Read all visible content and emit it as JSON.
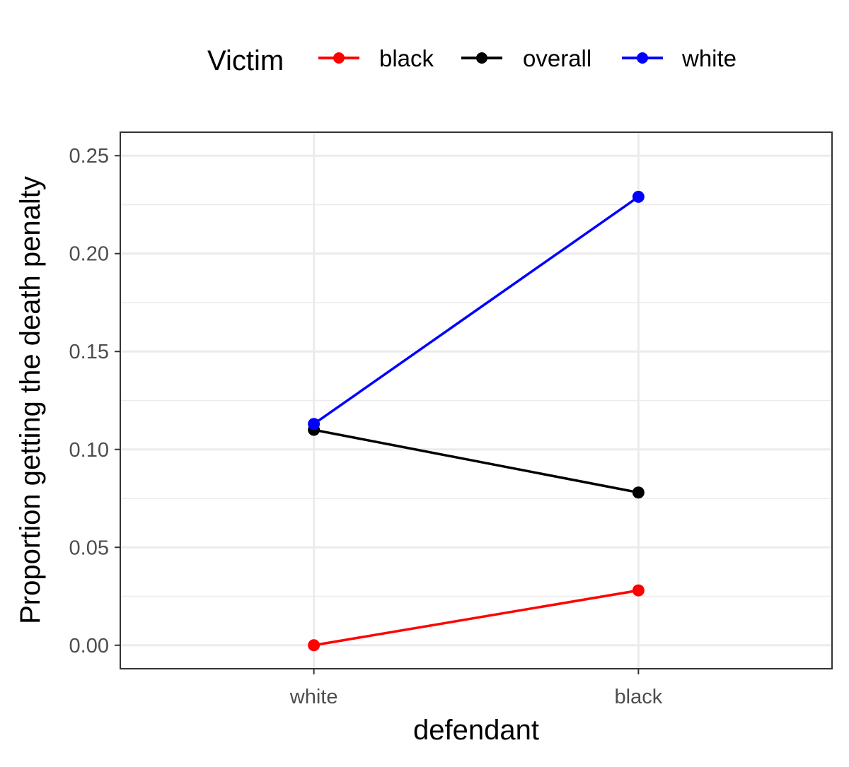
{
  "chart_data": {
    "type": "line",
    "title": "",
    "xlabel": "defendant",
    "ylabel": "Proportion getting the death penalty",
    "categories": [
      "white",
      "black"
    ],
    "ylim": [
      -0.012,
      0.262
    ],
    "yticks": [
      0.0,
      0.05,
      0.1,
      0.15,
      0.2,
      0.25
    ],
    "ytick_labels": [
      "0.00",
      "0.05",
      "0.10",
      "0.15",
      "0.20",
      "0.25"
    ],
    "grid": true,
    "legend": {
      "title": "Victim",
      "placement": "top",
      "entries": [
        "black",
        "overall",
        "white"
      ]
    },
    "series": [
      {
        "name": "black",
        "color": "#ff0000",
        "values": [
          0.0,
          0.028
        ]
      },
      {
        "name": "overall",
        "color": "#000000",
        "values": [
          0.11,
          0.078
        ]
      },
      {
        "name": "white",
        "color": "#0000ff",
        "values": [
          0.113,
          0.229
        ]
      }
    ]
  }
}
